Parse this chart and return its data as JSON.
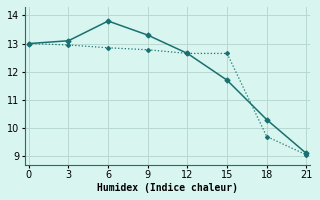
{
  "line1_x": [
    0,
    3,
    6,
    9,
    12,
    15,
    18,
    21
  ],
  "line1_y": [
    13.0,
    13.1,
    13.8,
    13.3,
    12.65,
    11.7,
    10.3,
    9.1
  ],
  "line2_x": [
    0,
    3,
    6,
    9,
    12,
    15,
    18,
    21
  ],
  "line2_y": [
    13.0,
    12.95,
    12.85,
    12.78,
    12.65,
    12.65,
    9.7,
    9.05
  ],
  "line_color": "#1a7070",
  "bg_color": "#d8f5f0",
  "grid_color_minor": "#c8e8e2",
  "grid_color_major": "#b8d8d2",
  "xlabel": "Humidex (Indice chaleur)",
  "xlabel_fontsize": 7,
  "xlim": [
    0,
    21
  ],
  "ylim": [
    8.7,
    14.3
  ],
  "xticks": [
    0,
    3,
    6,
    9,
    12,
    15,
    18,
    21
  ],
  "yticks": [
    9,
    10,
    11,
    12,
    13,
    14
  ],
  "tick_fontsize": 7
}
